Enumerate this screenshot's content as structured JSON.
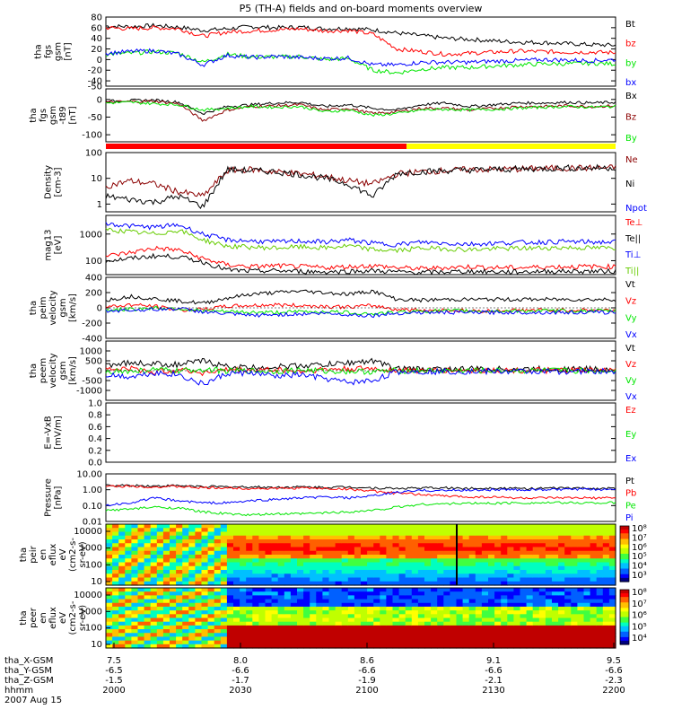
{
  "title": "P5 (TH-A) fields and on-board moments overview",
  "colors": {
    "black": "#000000",
    "red": "#ff0000",
    "green": "#00e600",
    "blue": "#0000ff",
    "darkred": "#8b0000",
    "yellow": "#ffff00",
    "darkgreen": "#66cc00"
  },
  "chart_data": {
    "type": "line",
    "title": "P5 (TH-A) fields and on-board moments overview",
    "x_time_range": [
      "2000",
      "2200"
    ],
    "panels": [
      {
        "name": "fgs",
        "ylabel": [
          "tha",
          "fgs",
          "gsm",
          "[nT]"
        ],
        "scale": "linear",
        "ylim": [
          -50,
          80
        ],
        "ticks": [
          "80",
          "60",
          "40",
          "20",
          "0",
          "-20",
          "-40",
          "-50"
        ],
        "series": [
          {
            "name": "Bt",
            "color": "black",
            "values": [
              63,
              62,
              64,
              61,
              55,
              58,
              62,
              60,
              61,
              58,
              59,
              56,
              50,
              45,
              40,
              38,
              35,
              33,
              32,
              30,
              28,
              27
            ]
          },
          {
            "name": "bz",
            "color": "red",
            "values": [
              60,
              58,
              60,
              58,
              44,
              52,
              54,
              56,
              58,
              54,
              55,
              48,
              20,
              15,
              10,
              12,
              14,
              16,
              15,
              14,
              14,
              13
            ]
          },
          {
            "name": "by",
            "color": "green",
            "values": [
              10,
              12,
              15,
              12,
              -5,
              10,
              5,
              5,
              6,
              0,
              2,
              -20,
              -25,
              -18,
              -15,
              -15,
              -12,
              -10,
              -8,
              -8,
              -7,
              -8
            ]
          },
          {
            "name": "bx",
            "color": "blue",
            "values": [
              12,
              15,
              17,
              10,
              -10,
              8,
              4,
              6,
              4,
              2,
              3,
              -10,
              -10,
              -5,
              -5,
              -5,
              -3,
              -2,
              0,
              -1,
              -2,
              0
            ]
          }
        ]
      },
      {
        "name": "fgs-t89",
        "ylabel": [
          "tha",
          "fgs",
          "gsm",
          "-t89",
          "[nT]"
        ],
        "scale": "linear",
        "ylim": [
          -120,
          30
        ],
        "ticks": [
          "0",
          "-50",
          "-100"
        ],
        "series": [
          {
            "name": "Bx",
            "color": "black",
            "values": [
              -5,
              -3,
              -2,
              -8,
              -40,
              -20,
              -15,
              -10,
              -8,
              -20,
              -15,
              -25,
              -30,
              -15,
              -10,
              -20,
              -15,
              -10,
              -10,
              -8,
              -10,
              -8
            ]
          },
          {
            "name": "Bz",
            "color": "darkred",
            "values": [
              -8,
              -6,
              -5,
              -12,
              -60,
              -30,
              -20,
              -18,
              -15,
              -30,
              -25,
              -40,
              -35,
              -25,
              -25,
              -30,
              -25,
              -20,
              -20,
              -18,
              -20,
              -18
            ]
          },
          {
            "name": "By",
            "color": "green",
            "values": [
              -10,
              -8,
              -12,
              -15,
              -30,
              -25,
              -20,
              -22,
              -20,
              -35,
              -30,
              -45,
              -40,
              -30,
              -28,
              -30,
              -28,
              -25,
              -22,
              -20,
              -22,
              -20
            ]
          }
        ]
      },
      {
        "name": "density",
        "ylabel": [
          "Density",
          "[cm-3]"
        ],
        "scale": "log",
        "ylim": [
          0.5,
          100
        ],
        "ticks": [
          "100",
          "10",
          "1"
        ],
        "series": [
          {
            "name": "Ne",
            "color": "darkred",
            "values": [
              5,
              8,
              6,
              3,
              2,
              20,
              22,
              18,
              15,
              12,
              8,
              6,
              15,
              18,
              20,
              22,
              22,
              23,
              24,
              25,
              25,
              26
            ]
          },
          {
            "name": "Ni",
            "color": "black",
            "values": [
              2,
              1.5,
              1.2,
              2,
              0.8,
              22,
              20,
              18,
              14,
              10,
              6,
              2,
              16,
              18,
              20,
              21,
              22,
              23,
              24,
              25,
              25,
              26
            ]
          },
          {
            "name": "Npot",
            "color": "blue",
            "values": []
          }
        ]
      },
      {
        "name": "temperature",
        "ylabel": [
          "mag13",
          "[eV]"
        ],
        "scale": "log",
        "ylim": [
          30,
          5000
        ],
        "ticks": [
          "1000",
          "100"
        ],
        "series": [
          {
            "name": "Te⊥",
            "color": "red",
            "values": [
              150,
              200,
              300,
              250,
              120,
              70,
              60,
              65,
              60,
              55,
              60,
              65,
              55,
              50,
              55,
              60,
              55,
              55,
              58,
              60,
              60,
              60
            ]
          },
          {
            "name": "Te||",
            "color": "black",
            "values": [
              100,
              120,
              150,
              140,
              90,
              45,
              40,
              42,
              40,
              38,
              40,
              42,
              38,
              36,
              38,
              40,
              38,
              38,
              40,
              40,
              40,
              40
            ]
          },
          {
            "name": "Ti⊥",
            "color": "blue",
            "values": [
              2500,
              2000,
              1800,
              2200,
              1000,
              600,
              550,
              500,
              550,
              500,
              600,
              450,
              400,
              500,
              450,
              420,
              450,
              480,
              500,
              520,
              500,
              500
            ]
          },
          {
            "name": "Ti||",
            "color": "darkgreen",
            "values": [
              1500,
              1200,
              1000,
              1400,
              600,
              350,
              320,
              300,
              330,
              300,
              360,
              260,
              240,
              300,
              280,
              260,
              280,
              290,
              300,
              310,
              300,
              300
            ]
          }
        ]
      },
      {
        "name": "peim-velocity",
        "ylabel": [
          "tha",
          "peim",
          "velocity",
          "gsm",
          "[km/s]"
        ],
        "scale": "linear",
        "ylim": [
          -400,
          400
        ],
        "ticks": [
          "400",
          "200",
          "0",
          "-200",
          "-400"
        ],
        "series": [
          {
            "name": "Vt",
            "color": "black",
            "values": [
              100,
              150,
              120,
              90,
              60,
              130,
              180,
              200,
              220,
              200,
              180,
              220,
              110,
              100,
              110,
              110,
              110,
              110,
              110,
              110,
              110,
              110
            ]
          },
          {
            "name": "Vz",
            "color": "red",
            "values": [
              10,
              40,
              20,
              -30,
              -20,
              20,
              30,
              40,
              30,
              20,
              10,
              30,
              -20,
              -30,
              -30,
              -40,
              -40,
              -30,
              -30,
              -30,
              -30,
              -30
            ]
          },
          {
            "name": "Vy",
            "color": "green",
            "values": [
              -30,
              -20,
              0,
              -10,
              -40,
              -50,
              -60,
              -60,
              -50,
              -50,
              -60,
              -80,
              -60,
              -40,
              -40,
              -40,
              -40,
              -40,
              -40,
              -40,
              -40,
              -40
            ]
          },
          {
            "name": "Vx",
            "color": "blue",
            "values": [
              -40,
              -30,
              -20,
              -10,
              -50,
              -80,
              -100,
              -90,
              -80,
              -70,
              -90,
              -100,
              -70,
              -60,
              -60,
              -60,
              -60,
              -60,
              -60,
              -60,
              -60,
              -60
            ]
          }
        ]
      },
      {
        "name": "peem-velocity",
        "ylabel": [
          "tha",
          "peem",
          "velocity",
          "gsm",
          "[km/s]"
        ],
        "scale": "linear",
        "ylim": [
          -1500,
          1500
        ],
        "ticks": [
          "1000",
          "500",
          "0",
          "-500",
          "-1000"
        ],
        "series": [
          {
            "name": "Vt",
            "color": "black",
            "values": [
              300,
              400,
              350,
              300,
              500,
              200,
              150,
              200,
              250,
              300,
              400,
              500,
              100,
              80,
              80,
              80,
              80,
              80,
              80,
              80,
              80,
              80
            ]
          },
          {
            "name": "Vz",
            "color": "red",
            "values": [
              50,
              100,
              -80,
              60,
              -100,
              40,
              30,
              50,
              -40,
              60,
              80,
              100,
              20,
              10,
              10,
              10,
              10,
              10,
              10,
              10,
              10,
              10
            ]
          },
          {
            "name": "Vy",
            "color": "green",
            "values": [
              0,
              -50,
              50,
              -30,
              80,
              -20,
              -10,
              -30,
              40,
              -20,
              -30,
              -50,
              0,
              0,
              0,
              0,
              0,
              0,
              0,
              0,
              0,
              0
            ]
          },
          {
            "name": "Vx",
            "color": "blue",
            "values": [
              -200,
              -300,
              -100,
              -200,
              -700,
              -150,
              -100,
              -300,
              -200,
              -400,
              -600,
              -500,
              -50,
              -40,
              -40,
              -40,
              -40,
              -40,
              -40,
              -40,
              -40,
              -40
            ]
          }
        ]
      },
      {
        "name": "efield",
        "ylabel": [
          "E=-VxB",
          "[mV/m]"
        ],
        "scale": "linear",
        "ylim": [
          0,
          1
        ],
        "ticks": [
          "1.0",
          "0.8",
          "0.6",
          "0.4",
          "0.2",
          "0.0"
        ],
        "series": [
          {
            "name": "Ez",
            "color": "red",
            "values": []
          },
          {
            "name": "Ey",
            "color": "green",
            "values": []
          },
          {
            "name": "Ex",
            "color": "blue",
            "values": []
          }
        ]
      },
      {
        "name": "pressure",
        "ylabel": [
          "Pressure",
          "[nPa]"
        ],
        "scale": "log",
        "ylim": [
          0.01,
          10
        ],
        "ticks": [
          "10.00",
          "1.00",
          "0.10",
          "0.01"
        ],
        "series": [
          {
            "name": "Pt",
            "color": "black",
            "values": [
              1.8,
              1.9,
              1.7,
              1.8,
              1.6,
              1.5,
              1.5,
              1.4,
              1.5,
              1.4,
              1.5,
              1.3,
              1.2,
              1.3,
              1.3,
              1.2,
              1.3,
              1.2,
              1.2,
              1.3,
              1.2,
              1.2
            ]
          },
          {
            "name": "Pb",
            "color": "red",
            "values": [
              1.6,
              1.7,
              1.5,
              1.6,
              1.3,
              1.3,
              1.2,
              1.2,
              1.3,
              1.2,
              1.1,
              0.8,
              0.6,
              0.5,
              0.4,
              0.35,
              0.35,
              0.3,
              0.3,
              0.3,
              0.3,
              0.3
            ]
          },
          {
            "name": "Pe",
            "color": "green",
            "values": [
              0.05,
              0.06,
              0.08,
              0.07,
              0.04,
              0.03,
              0.025,
              0.03,
              0.03,
              0.035,
              0.04,
              0.05,
              0.08,
              0.12,
              0.13,
              0.14,
              0.14,
              0.15,
              0.15,
              0.15,
              0.15,
              0.15
            ]
          },
          {
            "name": "Pi",
            "color": "blue",
            "values": [
              0.1,
              0.15,
              0.3,
              0.2,
              0.15,
              0.15,
              0.2,
              0.25,
              0.3,
              0.35,
              0.3,
              0.4,
              0.7,
              0.9,
              0.9,
              0.95,
              1.0,
              1.0,
              1.0,
              1.05,
              1.05,
              1.05
            ]
          }
        ]
      },
      {
        "name": "peir-eflux",
        "ylabel": [
          "tha",
          "peir",
          "en",
          "eflux",
          "eV",
          "(cm2-s-",
          "sr-eV)"
        ],
        "type": "heatmap",
        "ticks": [
          "10000",
          "1000",
          "100",
          "10"
        ],
        "colorbar_ticks": [
          "10⁸",
          "10⁷",
          "10⁶",
          "10⁵",
          "10⁴",
          "10³"
        ]
      },
      {
        "name": "peer-eflux",
        "ylabel": [
          "tha",
          "peer",
          "en",
          "eflux",
          "eV",
          "(cm2-s-",
          "sr-eV)"
        ],
        "type": "heatmap",
        "ticks": [
          "10000",
          "1000",
          "100",
          "10"
        ],
        "colorbar_ticks": [
          "10⁸",
          "10⁷",
          "10⁶",
          "10⁵",
          "10⁴"
        ]
      }
    ],
    "orbit_bar": {
      "segments": [
        {
          "from": 0.0,
          "to": 0.59,
          "color": "red"
        },
        {
          "from": 0.59,
          "to": 1.0,
          "color": "yellow"
        }
      ]
    },
    "x_axis": {
      "row_labels": [
        "tha_X-GSM",
        "tha_Y-GSM",
        "tha_Z-GSM",
        "hhmm",
        "2007 Aug 15"
      ],
      "columns": [
        {
          "x": "7.5",
          "y": "-6.5",
          "z": "-1.5",
          "hhmm": "2000"
        },
        {
          "x": "8.0",
          "y": "-6.6",
          "z": "-1.7",
          "hhmm": "2030"
        },
        {
          "x": "8.6",
          "y": "-6.6",
          "z": "-1.9",
          "hhmm": "2100"
        },
        {
          "x": "9.1",
          "y": "-6.6",
          "z": "-2.1",
          "hhmm": "2130"
        },
        {
          "x": "9.5",
          "y": "-6.6",
          "z": "-2.3",
          "hhmm": "2200"
        }
      ]
    }
  }
}
